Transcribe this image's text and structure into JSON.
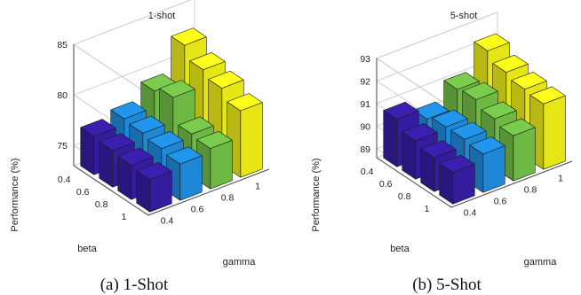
{
  "captions": [
    "(a) 1-Shot",
    "(b) 5-Shot"
  ],
  "colors": {
    "beta_0.4": "#3a1fb0",
    "beta_0.6": "#2196ee",
    "beta_0.8": "#7acc4c",
    "beta_1": "#ffff1a"
  },
  "chart_data": [
    {
      "type": "bar3d",
      "title": "1-shot",
      "xlabel": "beta",
      "ylabel": "gamma",
      "zlabel": "Performance (%)",
      "beta": [
        "0.4",
        "0.6",
        "0.8",
        "1"
      ],
      "gamma": [
        "0.4",
        "0.6",
        "0.8",
        "1"
      ],
      "zticks": [
        "75",
        "80",
        "85"
      ],
      "zlim": [
        73,
        85
      ],
      "values": [
        [
          76.8,
          76.6,
          76.4,
          76.2
        ],
        [
          77.4,
          77.2,
          76.9,
          76.6
        ],
        [
          79.0,
          79.6,
          77.2,
          77.0
        ],
        [
          82.4,
          81.2,
          80.6,
          79.6
        ]
      ]
    },
    {
      "type": "bar3d",
      "title": "5-shot",
      "xlabel": "beta",
      "ylabel": "gamma",
      "zlabel": "Performance (%)",
      "beta": [
        "0.4",
        "0.6",
        "0.8",
        "1"
      ],
      "gamma": [
        "0.4",
        "0.6",
        "0.8",
        "1"
      ],
      "zticks": [
        "89",
        "90",
        "91",
        "92",
        "93"
      ],
      "zlim": [
        88.6,
        93
      ],
      "values": [
        [
          90.7,
          90.3,
          90.1,
          90.0
        ],
        [
          90.2,
          90.4,
          90.4,
          90.3
        ],
        [
          91.0,
          91.1,
          90.8,
          90.6
        ],
        [
          92.2,
          91.8,
          91.6,
          91.5
        ]
      ]
    }
  ]
}
